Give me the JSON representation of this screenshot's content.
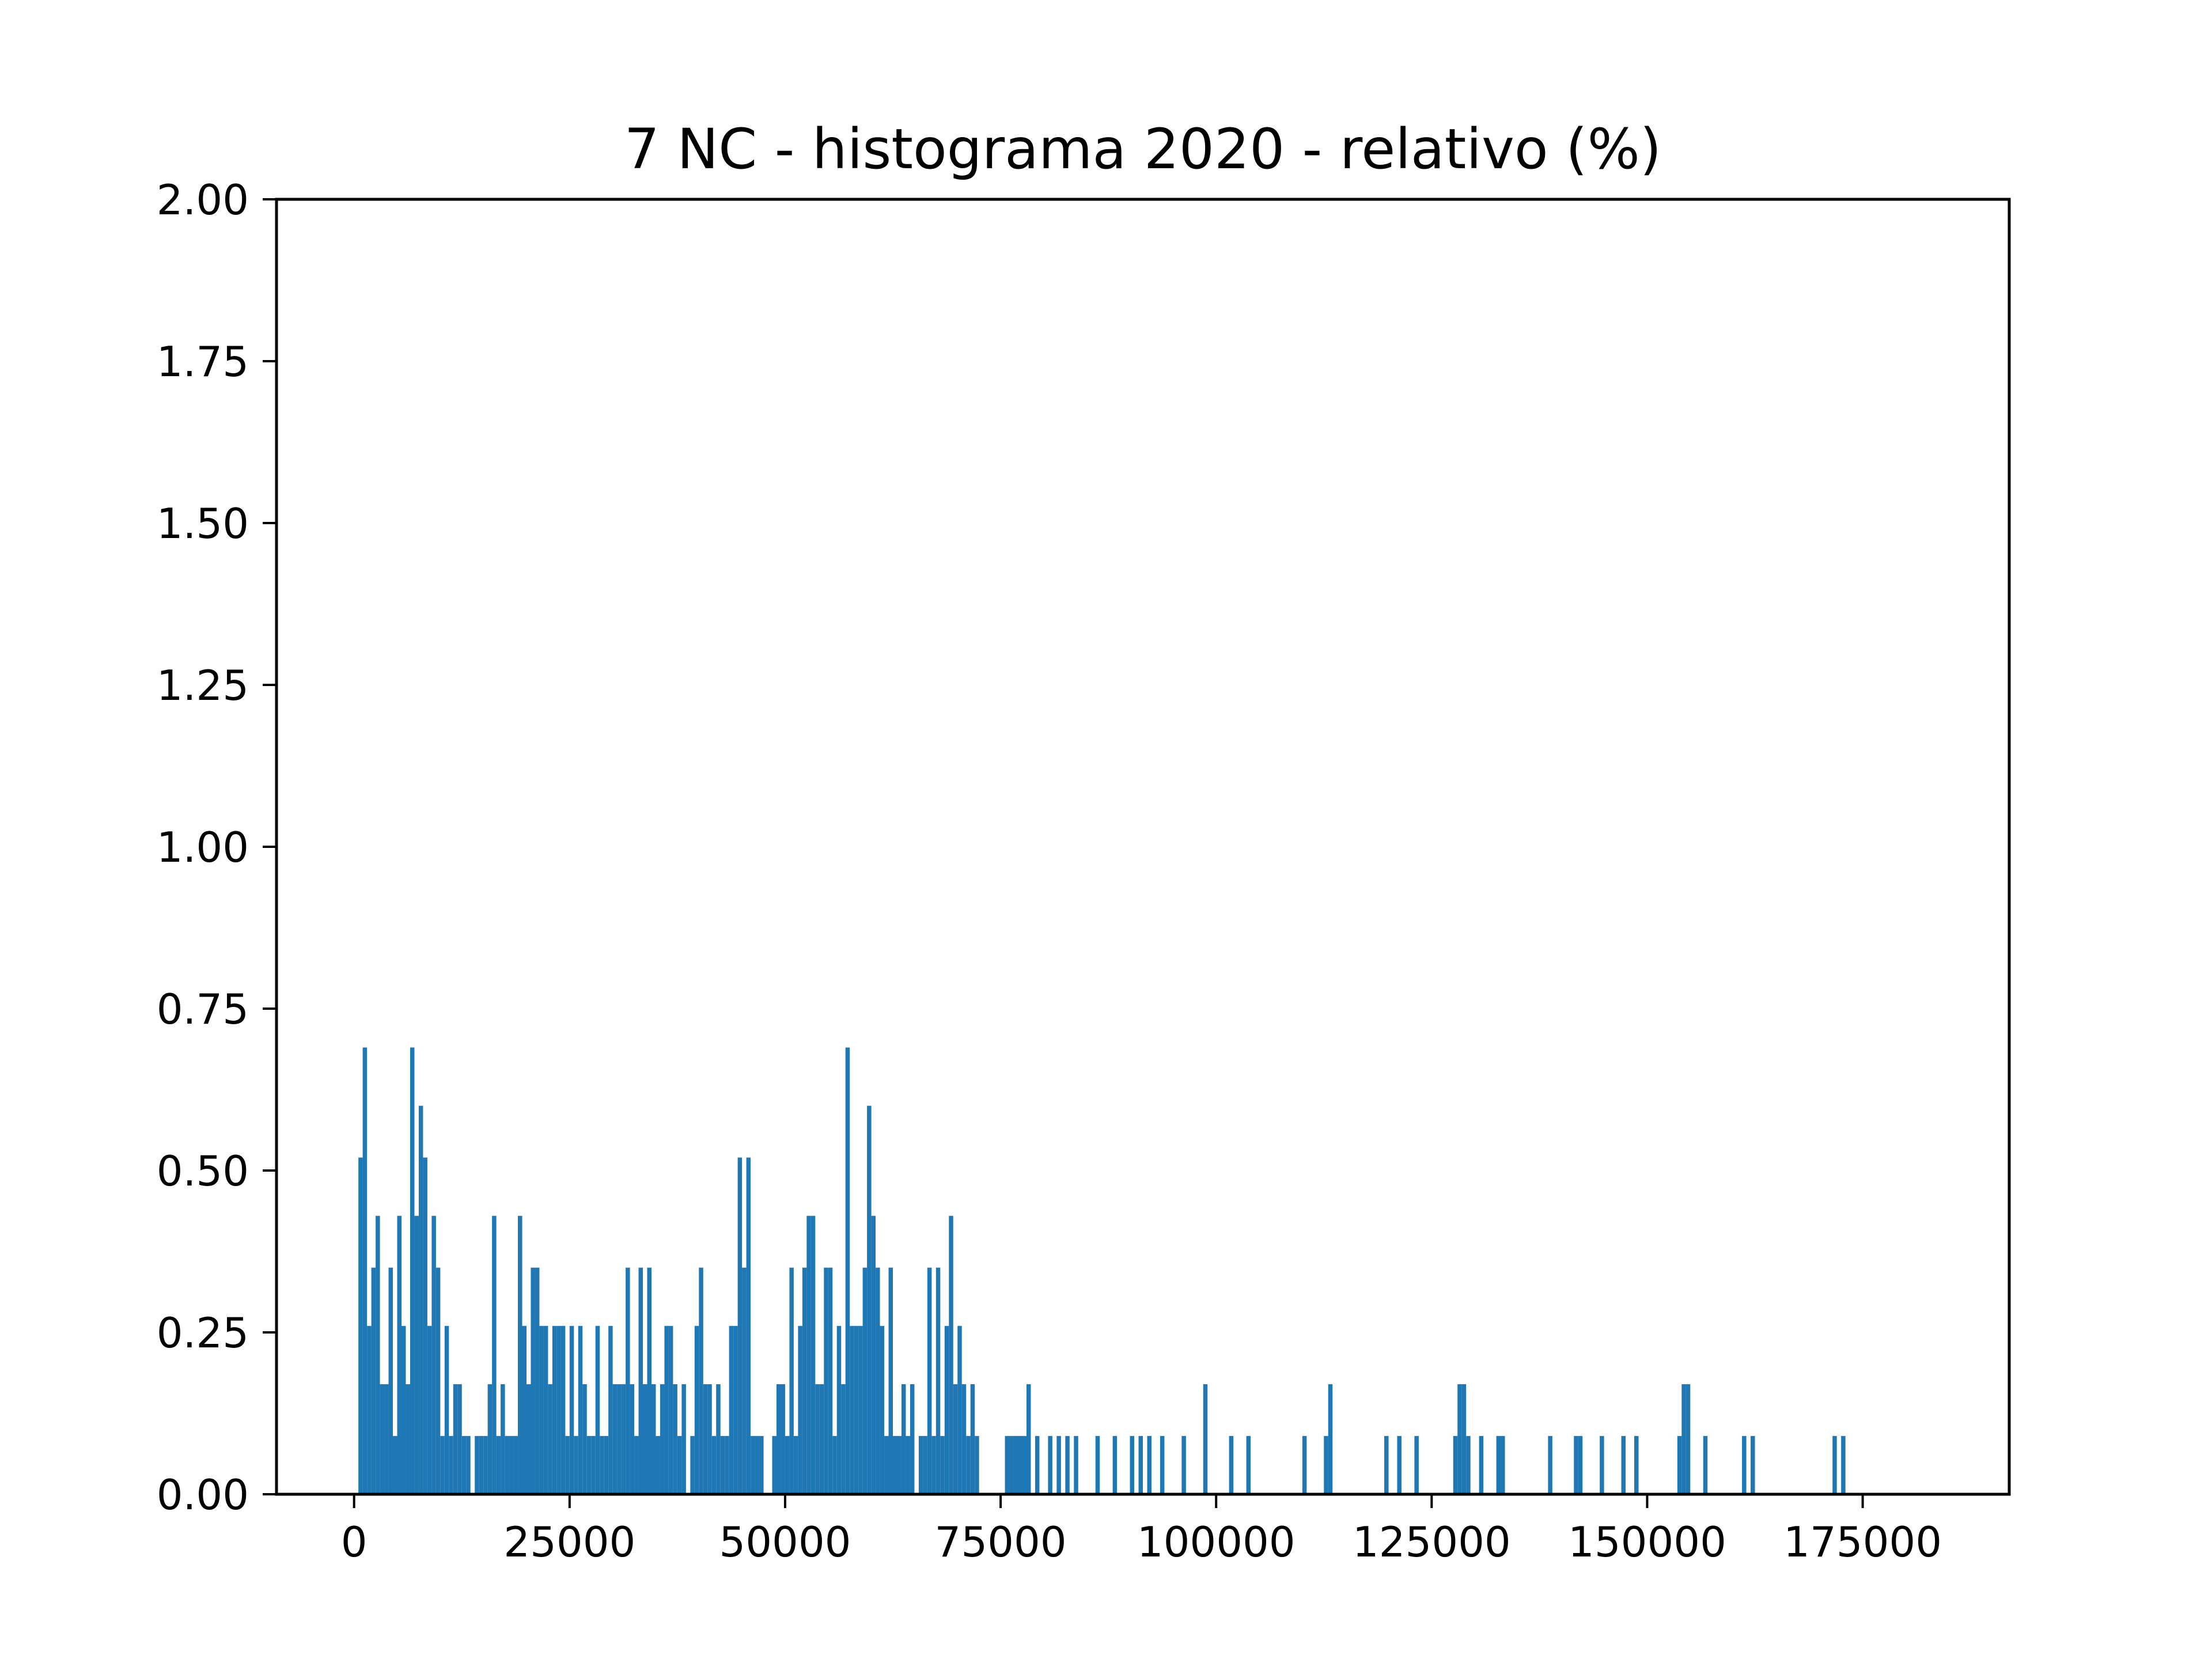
{
  "chart_data": {
    "type": "bar",
    "title": "7 NC - histograma 2020 - relativo (%)",
    "xlabel": "",
    "ylabel": "",
    "xlim": [
      -9000,
      192000
    ],
    "ylim": [
      0,
      2.0
    ],
    "x_ticks": [
      {
        "value": 0,
        "label": "0"
      },
      {
        "value": 25000,
        "label": "25000"
      },
      {
        "value": 50000,
        "label": "50000"
      },
      {
        "value": 75000,
        "label": "75000"
      },
      {
        "value": 100000,
        "label": "100000"
      },
      {
        "value": 125000,
        "label": "125000"
      },
      {
        "value": 150000,
        "label": "150000"
      },
      {
        "value": 175000,
        "label": "175000"
      }
    ],
    "y_ticks": [
      {
        "value": 0.0,
        "label": "0.00"
      },
      {
        "value": 0.25,
        "label": "0.25"
      },
      {
        "value": 0.5,
        "label": "0.50"
      },
      {
        "value": 0.75,
        "label": "0.75"
      },
      {
        "value": 1.0,
        "label": "1.00"
      },
      {
        "value": 1.25,
        "label": "1.25"
      },
      {
        "value": 1.5,
        "label": "1.50"
      },
      {
        "value": 1.75,
        "label": "1.75"
      },
      {
        "value": 2.0,
        "label": "2.00"
      }
    ],
    "grid": false,
    "bar_color": "#1f77b4",
    "bin_width": 500,
    "bins": [
      [
        500,
        0.52
      ],
      [
        1000,
        0.69
      ],
      [
        1500,
        0.26
      ],
      [
        2000,
        0.35
      ],
      [
        2500,
        0.43
      ],
      [
        3000,
        0.17
      ],
      [
        3500,
        0.17
      ],
      [
        4000,
        0.35
      ],
      [
        4500,
        0.09
      ],
      [
        5000,
        0.43
      ],
      [
        5500,
        0.26
      ],
      [
        6000,
        0.17
      ],
      [
        6500,
        0.69
      ],
      [
        7000,
        0.43
      ],
      [
        7500,
        0.6
      ],
      [
        8000,
        0.52
      ],
      [
        8500,
        0.26
      ],
      [
        9000,
        0.43
      ],
      [
        9500,
        0.35
      ],
      [
        10000,
        0.09
      ],
      [
        10500,
        0.26
      ],
      [
        11000,
        0.09
      ],
      [
        11500,
        0.17
      ],
      [
        12000,
        0.17
      ],
      [
        12500,
        0.09
      ],
      [
        13000,
        0.09
      ],
      [
        13500,
        0.0
      ],
      [
        14000,
        0.09
      ],
      [
        14500,
        0.09
      ],
      [
        15000,
        0.09
      ],
      [
        15500,
        0.17
      ],
      [
        16000,
        0.43
      ],
      [
        16500,
        0.09
      ],
      [
        17000,
        0.17
      ],
      [
        17500,
        0.09
      ],
      [
        18000,
        0.09
      ],
      [
        18500,
        0.09
      ],
      [
        19000,
        0.43
      ],
      [
        19500,
        0.26
      ],
      [
        20000,
        0.17
      ],
      [
        20500,
        0.35
      ],
      [
        21000,
        0.35
      ],
      [
        21500,
        0.26
      ],
      [
        22000,
        0.26
      ],
      [
        22500,
        0.17
      ],
      [
        23000,
        0.26
      ],
      [
        23500,
        0.26
      ],
      [
        24000,
        0.26
      ],
      [
        24500,
        0.09
      ],
      [
        25000,
        0.26
      ],
      [
        25500,
        0.09
      ],
      [
        26000,
        0.26
      ],
      [
        26500,
        0.17
      ],
      [
        27000,
        0.09
      ],
      [
        27500,
        0.09
      ],
      [
        28000,
        0.26
      ],
      [
        28500,
        0.09
      ],
      [
        29000,
        0.09
      ],
      [
        29500,
        0.26
      ],
      [
        30000,
        0.17
      ],
      [
        30500,
        0.17
      ],
      [
        31000,
        0.17
      ],
      [
        31500,
        0.35
      ],
      [
        32000,
        0.17
      ],
      [
        32500,
        0.09
      ],
      [
        33000,
        0.35
      ],
      [
        33500,
        0.17
      ],
      [
        34000,
        0.35
      ],
      [
        34500,
        0.17
      ],
      [
        35000,
        0.09
      ],
      [
        35500,
        0.17
      ],
      [
        36000,
        0.26
      ],
      [
        36500,
        0.26
      ],
      [
        37000,
        0.17
      ],
      [
        37500,
        0.09
      ],
      [
        38000,
        0.17
      ],
      [
        38500,
        0.0
      ],
      [
        39000,
        0.09
      ],
      [
        39500,
        0.26
      ],
      [
        40000,
        0.35
      ],
      [
        40500,
        0.17
      ],
      [
        41000,
        0.17
      ],
      [
        41500,
        0.09
      ],
      [
        42000,
        0.17
      ],
      [
        42500,
        0.09
      ],
      [
        43000,
        0.09
      ],
      [
        43500,
        0.26
      ],
      [
        44000,
        0.26
      ],
      [
        44500,
        0.52
      ],
      [
        45000,
        0.35
      ],
      [
        45500,
        0.52
      ],
      [
        46000,
        0.09
      ],
      [
        46500,
        0.09
      ],
      [
        47000,
        0.09
      ],
      [
        47500,
        0.0
      ],
      [
        48000,
        0.0
      ],
      [
        48500,
        0.09
      ],
      [
        49000,
        0.17
      ],
      [
        49500,
        0.17
      ],
      [
        50000,
        0.09
      ],
      [
        50500,
        0.35
      ],
      [
        51000,
        0.09
      ],
      [
        51500,
        0.26
      ],
      [
        52000,
        0.35
      ],
      [
        52500,
        0.43
      ],
      [
        53000,
        0.43
      ],
      [
        53500,
        0.17
      ],
      [
        54000,
        0.17
      ],
      [
        54500,
        0.35
      ],
      [
        55000,
        0.35
      ],
      [
        55500,
        0.09
      ],
      [
        56000,
        0.26
      ],
      [
        56500,
        0.17
      ],
      [
        57000,
        0.69
      ],
      [
        57500,
        0.26
      ],
      [
        58000,
        0.26
      ],
      [
        58500,
        0.26
      ],
      [
        59000,
        0.35
      ],
      [
        59500,
        0.6
      ],
      [
        60000,
        0.43
      ],
      [
        60500,
        0.35
      ],
      [
        61000,
        0.26
      ],
      [
        61500,
        0.09
      ],
      [
        62000,
        0.35
      ],
      [
        62500,
        0.09
      ],
      [
        63000,
        0.09
      ],
      [
        63500,
        0.17
      ],
      [
        64000,
        0.09
      ],
      [
        64500,
        0.17
      ],
      [
        65000,
        0.0
      ],
      [
        65500,
        0.09
      ],
      [
        66000,
        0.09
      ],
      [
        66500,
        0.35
      ],
      [
        67000,
        0.09
      ],
      [
        67500,
        0.35
      ],
      [
        68000,
        0.09
      ],
      [
        68500,
        0.26
      ],
      [
        69000,
        0.43
      ],
      [
        69500,
        0.17
      ],
      [
        70000,
        0.26
      ],
      [
        70500,
        0.17
      ],
      [
        71000,
        0.09
      ],
      [
        71500,
        0.17
      ],
      [
        72000,
        0.09
      ],
      [
        72500,
        0.0
      ],
      [
        73000,
        0.0
      ],
      [
        73500,
        0.0
      ],
      [
        74000,
        0.0
      ],
      [
        74500,
        0.0
      ],
      [
        75000,
        0.0
      ],
      [
        75500,
        0.09
      ],
      [
        76000,
        0.09
      ],
      [
        76500,
        0.09
      ],
      [
        77000,
        0.09
      ],
      [
        77500,
        0.09
      ],
      [
        78000,
        0.17
      ],
      [
        79000,
        0.09
      ],
      [
        80500,
        0.09
      ],
      [
        81500,
        0.09
      ],
      [
        82500,
        0.09
      ],
      [
        83500,
        0.09
      ],
      [
        86000,
        0.09
      ],
      [
        88000,
        0.09
      ],
      [
        90000,
        0.09
      ],
      [
        91000,
        0.09
      ],
      [
        92000,
        0.09
      ],
      [
        93500,
        0.09
      ],
      [
        96000,
        0.09
      ],
      [
        98500,
        0.17
      ],
      [
        101500,
        0.09
      ],
      [
        103500,
        0.09
      ],
      [
        110000,
        0.09
      ],
      [
        112500,
        0.09
      ],
      [
        113000,
        0.17
      ],
      [
        119500,
        0.09
      ],
      [
        121000,
        0.09
      ],
      [
        123000,
        0.09
      ],
      [
        127500,
        0.09
      ],
      [
        128000,
        0.17
      ],
      [
        128500,
        0.17
      ],
      [
        129000,
        0.09
      ],
      [
        130500,
        0.09
      ],
      [
        132500,
        0.09
      ],
      [
        133000,
        0.09
      ],
      [
        138500,
        0.09
      ],
      [
        141500,
        0.09
      ],
      [
        142000,
        0.09
      ],
      [
        144500,
        0.09
      ],
      [
        147000,
        0.09
      ],
      [
        148500,
        0.09
      ],
      [
        153500,
        0.09
      ],
      [
        154000,
        0.17
      ],
      [
        154500,
        0.17
      ],
      [
        156500,
        0.09
      ],
      [
        161000,
        0.09
      ],
      [
        162000,
        0.09
      ],
      [
        171500,
        0.09
      ],
      [
        172500,
        0.09
      ]
    ]
  }
}
